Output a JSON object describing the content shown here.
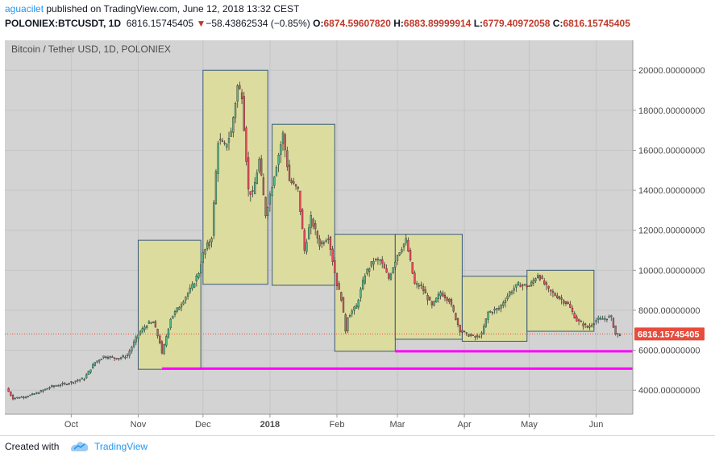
{
  "header": {
    "author": "aguacilet",
    "published": " published on TradingView.com, June 12, 2018 13:32 CEST",
    "symbol": "POLONIEX:BTCUSDT, 1D",
    "last": "6816.15745405",
    "change": "−58.43862534 (−0.85%)",
    "o_label": "O:",
    "o_value": "6874.59607820",
    "h_label": "H:",
    "h_value": "6883.89999914",
    "l_label": "L:",
    "l_value": "6779.40972058",
    "c_label": "C:",
    "c_value": "6816.15745405"
  },
  "footer": {
    "created_with": "Created with",
    "brand": "TradingView"
  },
  "chart_data": {
    "type": "candlestick",
    "title": "Bitcoin / Tether USD, 1D, POLONIEX",
    "ylim": [
      2800,
      21500
    ],
    "y_ticks": [
      4000,
      6000,
      8000,
      10000,
      12000,
      14000,
      16000,
      18000,
      20000
    ],
    "y_tick_labels": [
      "4000.00000000",
      "6000.00000000",
      "8000.00000000",
      "10000.00000000",
      "12000.00000000",
      "14000.00000000",
      "16000.00000000",
      "18000.00000000",
      "20000.00000000"
    ],
    "x_ticks": [
      {
        "label": "Oct",
        "date": "2017-10-01"
      },
      {
        "label": "Nov",
        "date": "2017-11-01"
      },
      {
        "label": "Dec",
        "date": "2017-12-01"
      },
      {
        "label": "2018",
        "date": "2018-01-01",
        "bold": true
      },
      {
        "label": "Feb",
        "date": "2018-02-01"
      },
      {
        "label": "Mar",
        "date": "2018-03-01"
      },
      {
        "label": "Apr",
        "date": "2018-04-01"
      },
      {
        "label": "May",
        "date": "2018-05-01"
      },
      {
        "label": "Jun",
        "date": "2018-06-01"
      }
    ],
    "date_range": [
      "2017-09-01",
      "2018-06-12"
    ],
    "last_price": 6816.15745405,
    "last_price_label": "6816.15745405",
    "colors": {
      "up": "#53b987",
      "down": "#eb4d5c",
      "box": "#dcdc9a",
      "support": "#ff00ff",
      "last": "#e74c3c"
    },
    "closes": [
      {
        "date": "2017-09-01",
        "value": 4100
      },
      {
        "date": "2017-09-04",
        "value": 3600
      },
      {
        "date": "2017-09-12",
        "value": 3750
      },
      {
        "date": "2017-09-16",
        "value": 3900
      },
      {
        "date": "2017-09-22",
        "value": 4200
      },
      {
        "date": "2017-09-29",
        "value": 4350
      },
      {
        "date": "2017-10-07",
        "value": 4600
      },
      {
        "date": "2017-10-12",
        "value": 5400
      },
      {
        "date": "2017-10-16",
        "value": 5700
      },
      {
        "date": "2017-10-23",
        "value": 5600
      },
      {
        "date": "2017-10-27",
        "value": 5750
      },
      {
        "date": "2017-11-01",
        "value": 6800
      },
      {
        "date": "2017-11-05",
        "value": 7300
      },
      {
        "date": "2017-11-08",
        "value": 7400
      },
      {
        "date": "2017-11-11",
        "value": 6400
      },
      {
        "date": "2017-11-12",
        "value": 5800
      },
      {
        "date": "2017-11-16",
        "value": 7600
      },
      {
        "date": "2017-11-20",
        "value": 8200
      },
      {
        "date": "2017-11-26",
        "value": 9200
      },
      {
        "date": "2017-11-29",
        "value": 9900
      },
      {
        "date": "2017-12-01",
        "value": 10800
      },
      {
        "date": "2017-12-05",
        "value": 11700
      },
      {
        "date": "2017-12-08",
        "value": 16500
      },
      {
        "date": "2017-12-11",
        "value": 16200
      },
      {
        "date": "2017-12-14",
        "value": 16900
      },
      {
        "date": "2017-12-17",
        "value": 19200
      },
      {
        "date": "2017-12-19",
        "value": 18800
      },
      {
        "date": "2017-12-22",
        "value": 14000
      },
      {
        "date": "2017-12-24",
        "value": 13800
      },
      {
        "date": "2017-12-27",
        "value": 15500
      },
      {
        "date": "2017-12-30",
        "value": 12800
      },
      {
        "date": "2018-01-03",
        "value": 14800
      },
      {
        "date": "2018-01-07",
        "value": 16800
      },
      {
        "date": "2018-01-10",
        "value": 14500
      },
      {
        "date": "2018-01-14",
        "value": 14000
      },
      {
        "date": "2018-01-17",
        "value": 11000
      },
      {
        "date": "2018-01-20",
        "value": 12600
      },
      {
        "date": "2018-01-24",
        "value": 11300
      },
      {
        "date": "2018-01-28",
        "value": 11700
      },
      {
        "date": "2018-02-01",
        "value": 9300
      },
      {
        "date": "2018-02-03",
        "value": 8600
      },
      {
        "date": "2018-02-05",
        "value": 7000
      },
      {
        "date": "2018-02-06",
        "value": 7700
      },
      {
        "date": "2018-02-10",
        "value": 8200
      },
      {
        "date": "2018-02-14",
        "value": 9800
      },
      {
        "date": "2018-02-18",
        "value": 10500
      },
      {
        "date": "2018-02-21",
        "value": 10500
      },
      {
        "date": "2018-02-25",
        "value": 9600
      },
      {
        "date": "2018-03-01",
        "value": 10800
      },
      {
        "date": "2018-03-05",
        "value": 11500
      },
      {
        "date": "2018-03-09",
        "value": 9300
      },
      {
        "date": "2018-03-12",
        "value": 9200
      },
      {
        "date": "2018-03-17",
        "value": 8200
      },
      {
        "date": "2018-03-21",
        "value": 8900
      },
      {
        "date": "2018-03-25",
        "value": 8500
      },
      {
        "date": "2018-03-30",
        "value": 7000
      },
      {
        "date": "2018-04-01",
        "value": 6850
      },
      {
        "date": "2018-04-06",
        "value": 6650
      },
      {
        "date": "2018-04-09",
        "value": 6800
      },
      {
        "date": "2018-04-12",
        "value": 7900
      },
      {
        "date": "2018-04-17",
        "value": 8100
      },
      {
        "date": "2018-04-22",
        "value": 8900
      },
      {
        "date": "2018-04-26",
        "value": 9300
      },
      {
        "date": "2018-05-01",
        "value": 9200
      },
      {
        "date": "2018-05-05",
        "value": 9800
      },
      {
        "date": "2018-05-10",
        "value": 9000
      },
      {
        "date": "2018-05-14",
        "value": 8700
      },
      {
        "date": "2018-05-19",
        "value": 8300
      },
      {
        "date": "2018-05-23",
        "value": 7500
      },
      {
        "date": "2018-05-28",
        "value": 7150
      },
      {
        "date": "2018-06-01",
        "value": 7500
      },
      {
        "date": "2018-06-05",
        "value": 7600
      },
      {
        "date": "2018-06-08",
        "value": 7650
      },
      {
        "date": "2018-06-10",
        "value": 6800
      },
      {
        "date": "2018-06-12",
        "value": 6816
      }
    ],
    "boxes": [
      {
        "from": "2017-11-01",
        "to": "2017-11-30",
        "low": 5050,
        "high": 11500
      },
      {
        "from": "2017-12-01",
        "to": "2017-12-31",
        "low": 9300,
        "high": 20000
      },
      {
        "from": "2018-01-02",
        "to": "2018-01-31",
        "low": 9250,
        "high": 17300
      },
      {
        "from": "2018-01-31",
        "to": "2018-02-28",
        "low": 5950,
        "high": 11800
      },
      {
        "from": "2018-02-28",
        "to": "2018-03-31",
        "low": 6550,
        "high": 11800
      },
      {
        "from": "2018-03-31",
        "to": "2018-04-30",
        "low": 6450,
        "high": 9700
      },
      {
        "from": "2018-04-30",
        "to": "2018-05-31",
        "low": 6950,
        "high": 10000
      }
    ],
    "support_lines": [
      {
        "from": "2017-11-12",
        "value": 5080
      },
      {
        "from": "2018-02-28",
        "value": 5950
      }
    ]
  }
}
